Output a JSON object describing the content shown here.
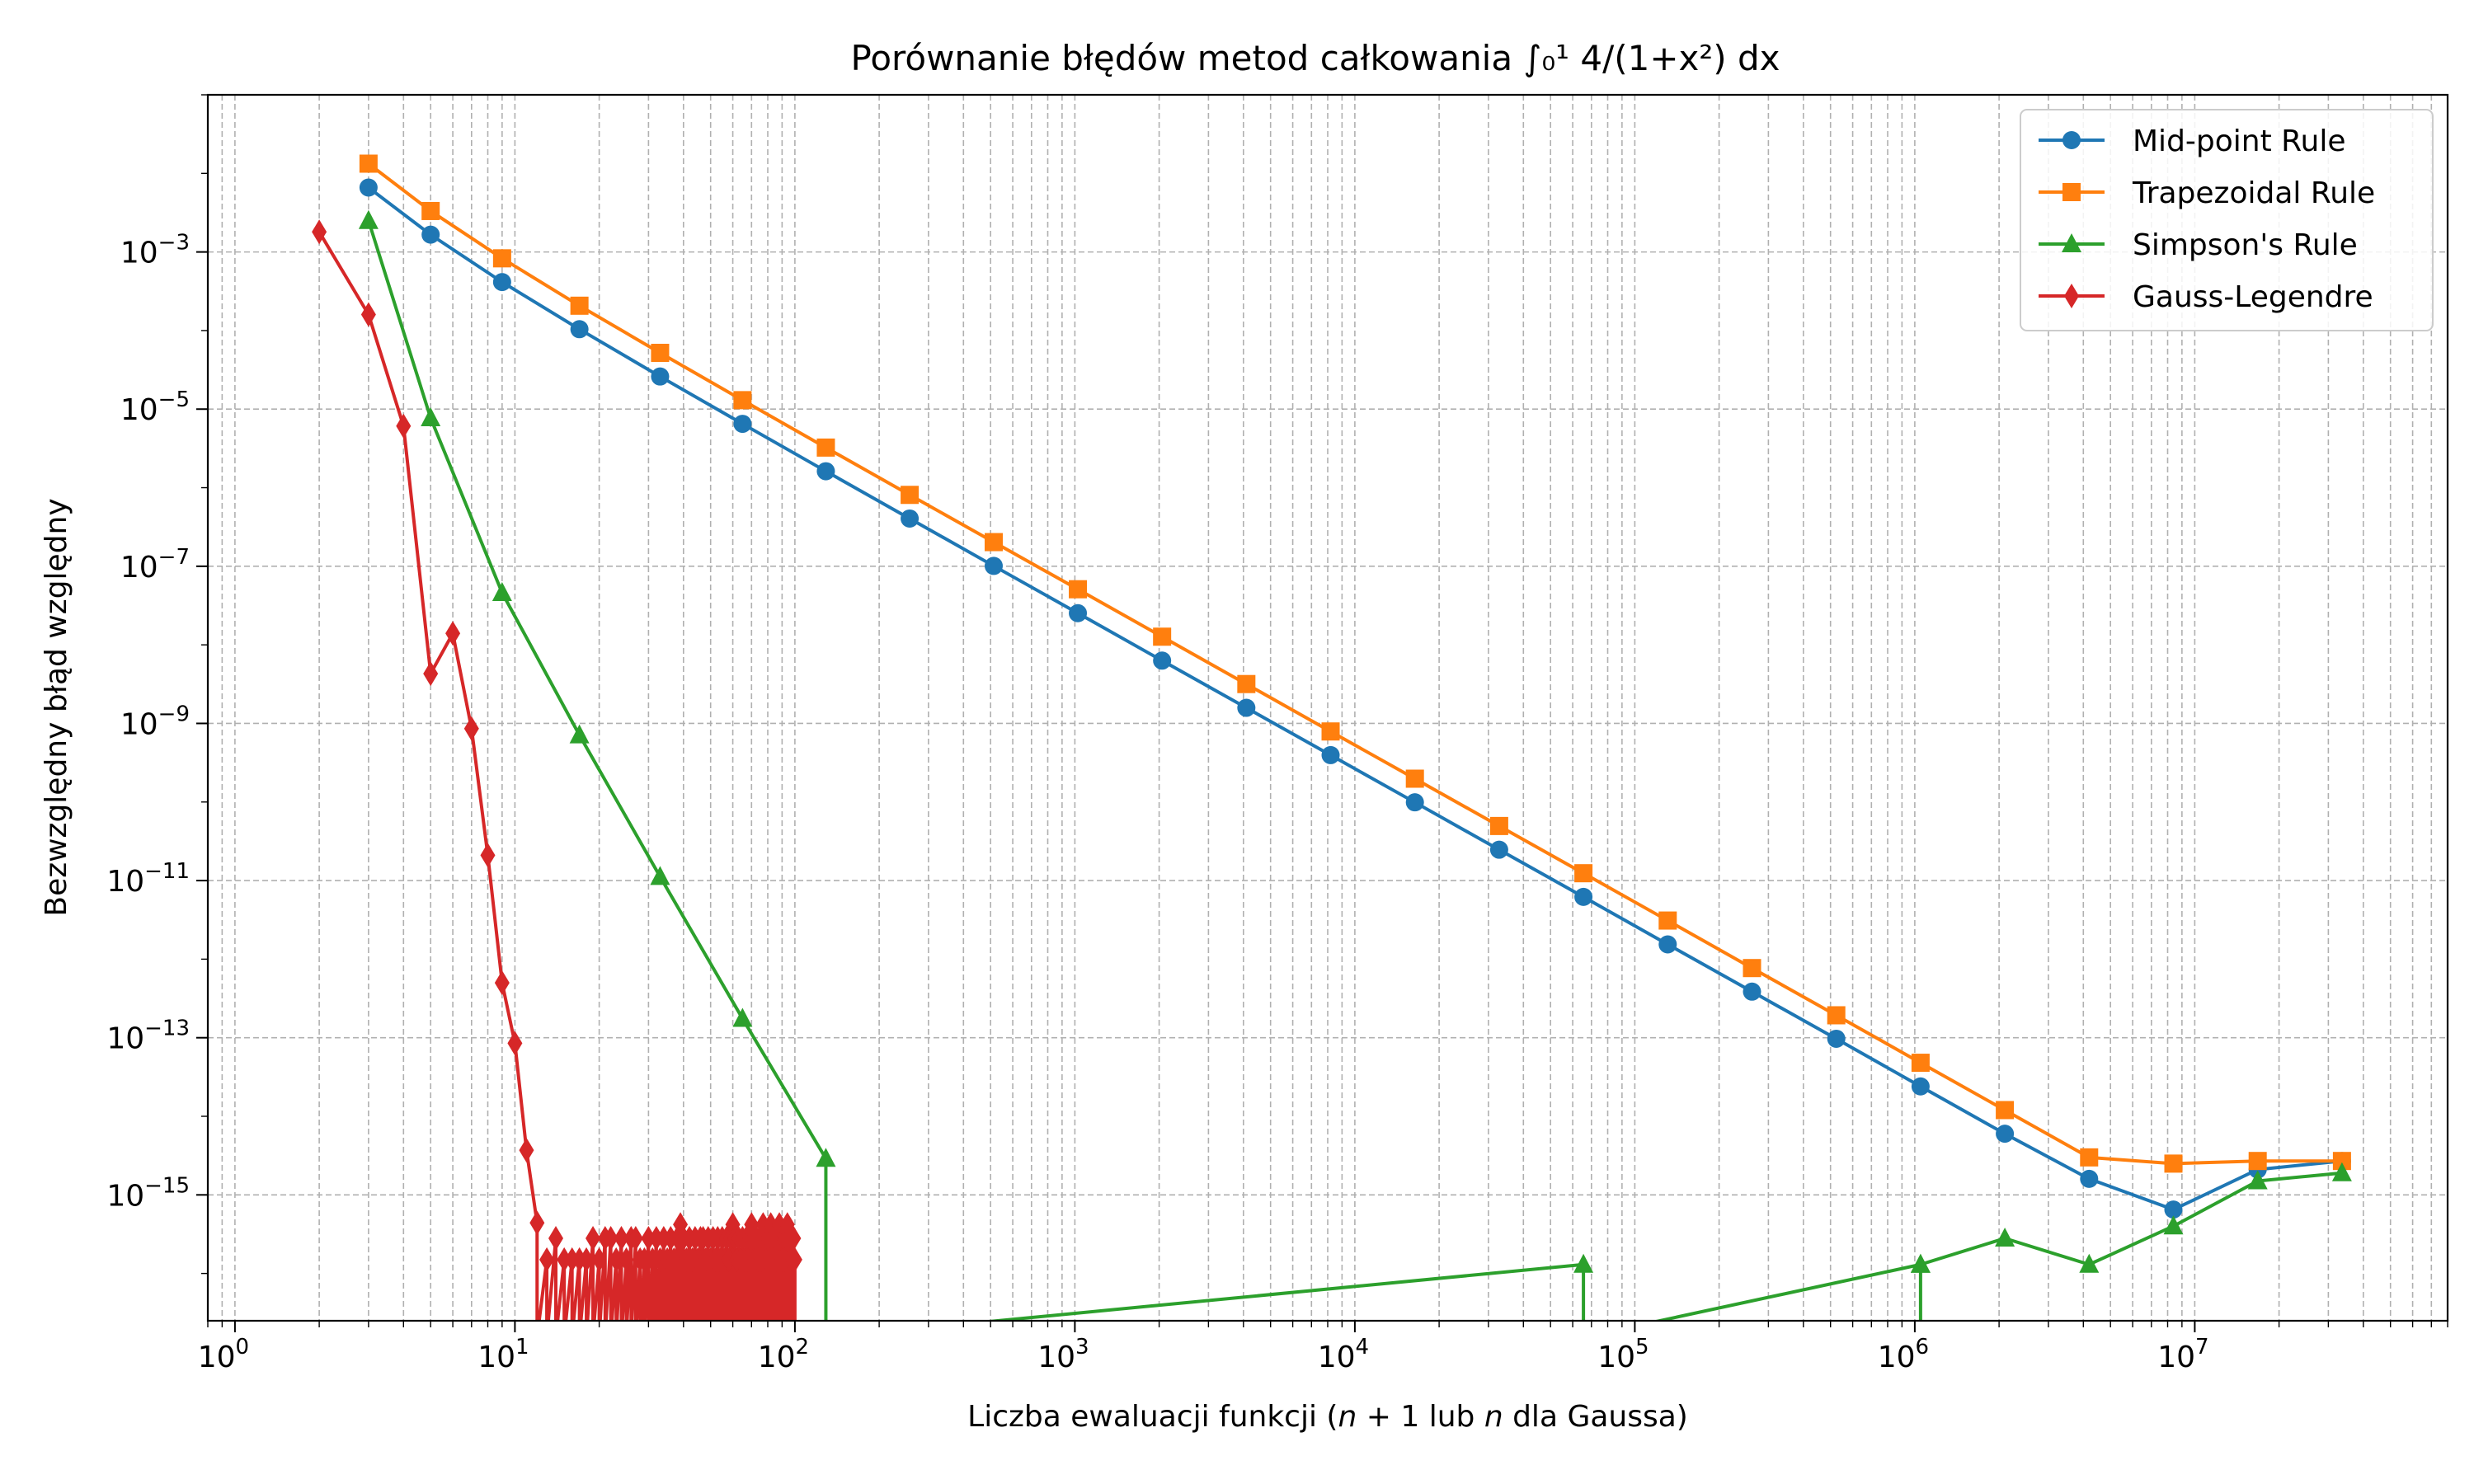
{
  "chart_data": {
    "type": "line",
    "title": "Porównanie błędów metod całkowania ∫₀¹ 4/(1+x²) dx",
    "xlabel_parts": [
      "Liczba ewaluacji funkcji (",
      "n",
      " + 1 lub ",
      "n",
      " dla Gaussa)"
    ],
    "ylabel": "Bezwzględny błąd względny",
    "xscale": "log",
    "yscale": "log",
    "xlim": [
      0.8,
      80000000
    ],
    "ylim": [
      2.5e-17,
      0.1
    ],
    "grid": "both (major and minor), dashed",
    "legend_position": "top-right",
    "x_ticks": [
      {
        "v": 1,
        "base": "10",
        "exp": "0"
      },
      {
        "v": 10,
        "base": "10",
        "exp": "1"
      },
      {
        "v": 100,
        "base": "10",
        "exp": "2"
      },
      {
        "v": 1000,
        "base": "10",
        "exp": "3"
      },
      {
        "v": 10000,
        "base": "10",
        "exp": "4"
      },
      {
        "v": 100000,
        "base": "10",
        "exp": "5"
      },
      {
        "v": 1000000,
        "base": "10",
        "exp": "6"
      },
      {
        "v": 10000000,
        "base": "10",
        "exp": "7"
      }
    ],
    "y_ticks": [
      {
        "v": 0.001,
        "base": "10",
        "exp": "−3"
      },
      {
        "v": 1e-05,
        "base": "10",
        "exp": "−5"
      },
      {
        "v": 1e-07,
        "base": "10",
        "exp": "−7"
      },
      {
        "v": 1e-09,
        "base": "10",
        "exp": "−9"
      },
      {
        "v": 1e-11,
        "base": "10",
        "exp": "−11"
      },
      {
        "v": 1e-13,
        "base": "10",
        "exp": "−13"
      },
      {
        "v": 1e-15,
        "base": "10",
        "exp": "−15"
      }
    ],
    "series": [
      {
        "name": "Mid-point Rule",
        "color": "#1f77b4",
        "marker": "circle",
        "points": [
          [
            3,
            0.0066
          ],
          [
            5,
            0.00166
          ],
          [
            9,
            0.000414
          ],
          [
            17,
            0.000104
          ],
          [
            33,
            2.6e-05
          ],
          [
            65,
            6.5e-06
          ],
          [
            129,
            1.62e-06
          ],
          [
            257,
            4.05e-07
          ],
          [
            513,
            1.01e-07
          ],
          [
            1025,
            2.53e-08
          ],
          [
            2049,
            6.3e-09
          ],
          [
            4097,
            1.58e-09
          ],
          [
            8193,
            3.95e-10
          ],
          [
            16385,
            9.9e-11
          ],
          [
            32769,
            2.47e-11
          ],
          [
            65537,
            6.2e-12
          ],
          [
            131073,
            1.54e-12
          ],
          [
            262145,
            3.86e-13
          ],
          [
            524289,
            9.7e-14
          ],
          [
            1048577,
            2.4e-14
          ],
          [
            2097153,
            6e-15
          ],
          [
            4194305,
            1.6e-15
          ],
          [
            8388609,
            6.5e-16
          ],
          [
            16777217,
            2.1e-15
          ],
          [
            33554433,
            2.7e-15
          ]
        ]
      },
      {
        "name": "Trapezoidal Rule",
        "color": "#ff7f0e",
        "marker": "square",
        "points": [
          [
            3,
            0.0133
          ],
          [
            5,
            0.00332
          ],
          [
            9,
            0.00083
          ],
          [
            17,
            0.000207
          ],
          [
            33,
            5.2e-05
          ],
          [
            65,
            1.3e-05
          ],
          [
            129,
            3.24e-06
          ],
          [
            257,
            8.1e-07
          ],
          [
            513,
            2.03e-07
          ],
          [
            1025,
            5.1e-08
          ],
          [
            2049,
            1.27e-08
          ],
          [
            4097,
            3.17e-09
          ],
          [
            8193,
            7.9e-10
          ],
          [
            16385,
            1.98e-10
          ],
          [
            32769,
            4.95e-11
          ],
          [
            65537,
            1.24e-11
          ],
          [
            131073,
            3.1e-12
          ],
          [
            262145,
            7.7e-13
          ],
          [
            524289,
            1.93e-13
          ],
          [
            1048577,
            4.8e-14
          ],
          [
            2097153,
            1.2e-14
          ],
          [
            4194305,
            3e-15
          ],
          [
            8388609,
            2.5e-15
          ],
          [
            16777217,
            2.7e-15
          ],
          [
            33554433,
            2.7e-15
          ]
        ]
      },
      {
        "name": "Simpson's Rule",
        "color": "#2ca02c",
        "marker": "triangle",
        "points": [
          [
            3,
            0.0025
          ],
          [
            5,
            7.7e-06
          ],
          [
            9,
            4.6e-08
          ],
          [
            17,
            7.1e-10
          ],
          [
            33,
            1.12e-11
          ],
          [
            65,
            1.75e-13
          ],
          [
            129,
            2.9e-15
          ],
          [
            129,
            0
          ],
          [
            65537,
            1.3e-16
          ],
          [
            65537,
            0
          ],
          [
            1048577,
            1.3e-16
          ],
          [
            1048577,
            0
          ],
          [
            1048577,
            1.3e-16
          ],
          [
            2097153,
            2.8e-16
          ],
          [
            4194305,
            1.3e-16
          ],
          [
            8388609,
            4e-16
          ],
          [
            16777217,
            1.5e-15
          ],
          [
            33554433,
            1.9e-15
          ]
        ]
      },
      {
        "name": "Gauss-Legendre",
        "color": "#d62728",
        "marker": "diamond",
        "points": [
          [
            2,
            0.0018
          ],
          [
            3,
            0.00016
          ],
          [
            4,
            6.1e-06
          ],
          [
            5,
            4.3e-09
          ],
          [
            6,
            1.4e-08
          ],
          [
            7,
            8.6e-10
          ],
          [
            8,
            2.1e-11
          ],
          [
            9,
            5e-13
          ],
          [
            10,
            8.5e-14
          ],
          [
            11,
            3.7e-15
          ],
          [
            12,
            4.4e-16
          ],
          [
            12,
            0
          ],
          [
            13,
            1.5e-16
          ],
          [
            13,
            0
          ],
          [
            14,
            2.8e-16
          ],
          [
            14,
            0
          ],
          [
            15,
            1.5e-16
          ],
          [
            15,
            0
          ],
          [
            16,
            1.5e-16
          ],
          [
            16,
            0
          ],
          [
            17,
            1.5e-16
          ],
          [
            17,
            0
          ],
          [
            18,
            1.5e-16
          ],
          [
            18,
            0
          ],
          [
            19,
            2.8e-16
          ],
          [
            19,
            0
          ],
          [
            20,
            1.5e-16
          ],
          [
            20,
            0
          ],
          [
            21,
            2.8e-16
          ],
          [
            21,
            0
          ],
          [
            22,
            2.8e-16
          ],
          [
            22,
            0
          ],
          [
            23,
            1.5e-16
          ],
          [
            23,
            0
          ],
          [
            24,
            2.8e-16
          ],
          [
            24,
            0
          ],
          [
            25,
            1.5e-16
          ],
          [
            25,
            0
          ],
          [
            26,
            2.8e-16
          ],
          [
            26,
            0
          ],
          [
            27,
            2.8e-16
          ],
          [
            27,
            0
          ],
          [
            28,
            1.5e-16
          ],
          [
            28,
            0
          ],
          [
            29,
            1.5e-16
          ],
          [
            29,
            0
          ],
          [
            30,
            2.8e-16
          ],
          [
            30,
            0
          ],
          [
            31,
            1.5e-16
          ],
          [
            31,
            0
          ],
          [
            32,
            2.8e-16
          ],
          [
            32,
            0
          ],
          [
            33,
            1.5e-16
          ],
          [
            33,
            0
          ],
          [
            34,
            2.8e-16
          ],
          [
            34,
            0
          ],
          [
            35,
            1.5e-16
          ],
          [
            35,
            0
          ],
          [
            36,
            2.8e-16
          ],
          [
            36,
            0
          ],
          [
            37,
            1.5e-16
          ],
          [
            37,
            0
          ],
          [
            38,
            2.8e-16
          ],
          [
            38,
            0
          ],
          [
            39,
            4.2e-16
          ],
          [
            39,
            0
          ],
          [
            40,
            2.8e-16
          ],
          [
            40,
            0
          ],
          [
            41,
            1.5e-16
          ],
          [
            41,
            0
          ],
          [
            42,
            2.8e-16
          ],
          [
            42,
            0
          ],
          [
            43,
            1.5e-16
          ],
          [
            43,
            0
          ],
          [
            44,
            2.8e-16
          ],
          [
            44,
            0
          ],
          [
            45,
            1.5e-16
          ],
          [
            45,
            0
          ],
          [
            46,
            2.8e-16
          ],
          [
            46,
            0
          ],
          [
            47,
            2.8e-16
          ],
          [
            47,
            0
          ],
          [
            48,
            1.5e-16
          ],
          [
            48,
            0
          ],
          [
            49,
            2.8e-16
          ],
          [
            49,
            0
          ],
          [
            50,
            1.5e-16
          ],
          [
            50,
            0
          ],
          [
            51,
            2.8e-16
          ],
          [
            51,
            0
          ],
          [
            52,
            1.5e-16
          ],
          [
            52,
            0
          ],
          [
            53,
            2.8e-16
          ],
          [
            53,
            0
          ],
          [
            54,
            1.5e-16
          ],
          [
            54,
            0
          ],
          [
            55,
            2.8e-16
          ],
          [
            55,
            0
          ],
          [
            56,
            1.5e-16
          ],
          [
            56,
            0
          ],
          [
            57,
            2.8e-16
          ],
          [
            57,
            0
          ],
          [
            58,
            1.5e-16
          ],
          [
            58,
            0
          ],
          [
            59,
            2.8e-16
          ],
          [
            59,
            0
          ],
          [
            60,
            4.2e-16
          ],
          [
            60,
            0
          ],
          [
            61,
            2.8e-16
          ],
          [
            61,
            0
          ],
          [
            62,
            1.5e-16
          ],
          [
            62,
            0
          ],
          [
            63,
            2.8e-16
          ],
          [
            63,
            0
          ],
          [
            64,
            1.5e-16
          ],
          [
            64,
            0
          ],
          [
            65,
            2.8e-16
          ],
          [
            65,
            0
          ],
          [
            66,
            1.5e-16
          ],
          [
            66,
            0
          ],
          [
            67,
            2.8e-16
          ],
          [
            67,
            0
          ],
          [
            68,
            1.5e-16
          ],
          [
            68,
            0
          ],
          [
            69,
            2.8e-16
          ],
          [
            69,
            0
          ],
          [
            70,
            4.2e-16
          ],
          [
            70,
            0
          ],
          [
            71,
            2.8e-16
          ],
          [
            71,
            0
          ],
          [
            72,
            1.5e-16
          ],
          [
            72,
            0
          ],
          [
            73,
            2.8e-16
          ],
          [
            73,
            0
          ],
          [
            74,
            1.5e-16
          ],
          [
            74,
            0
          ],
          [
            75,
            2.8e-16
          ],
          [
            75,
            0
          ],
          [
            76,
            1.5e-16
          ],
          [
            76,
            0
          ],
          [
            77,
            4.2e-16
          ],
          [
            77,
            0
          ],
          [
            78,
            2.8e-16
          ],
          [
            78,
            0
          ],
          [
            79,
            1.5e-16
          ],
          [
            79,
            0
          ],
          [
            80,
            2.8e-16
          ],
          [
            80,
            0
          ],
          [
            81,
            1.5e-16
          ],
          [
            81,
            0
          ],
          [
            82,
            4.2e-16
          ],
          [
            82,
            0
          ],
          [
            83,
            2.8e-16
          ],
          [
            83,
            0
          ],
          [
            84,
            1.5e-16
          ],
          [
            84,
            0
          ],
          [
            85,
            2.8e-16
          ],
          [
            85,
            0
          ],
          [
            86,
            1.5e-16
          ],
          [
            86,
            0
          ],
          [
            87,
            2.8e-16
          ],
          [
            87,
            0
          ],
          [
            88,
            4.2e-16
          ],
          [
            88,
            0
          ],
          [
            89,
            2.8e-16
          ],
          [
            89,
            0
          ],
          [
            90,
            1.5e-16
          ],
          [
            90,
            0
          ],
          [
            91,
            2.8e-16
          ],
          [
            91,
            0
          ],
          [
            92,
            1.5e-16
          ],
          [
            92,
            0
          ],
          [
            93,
            2.8e-16
          ],
          [
            93,
            0
          ],
          [
            94,
            4.2e-16
          ],
          [
            94,
            0
          ],
          [
            95,
            2.8e-16
          ],
          [
            95,
            0
          ],
          [
            96,
            1.5e-16
          ],
          [
            96,
            0
          ],
          [
            97,
            2.8e-16
          ],
          [
            97,
            0
          ],
          [
            98,
            1.5e-16
          ],
          [
            98,
            0
          ],
          [
            99,
            2.8e-16
          ],
          [
            99,
            0
          ],
          [
            100,
            1.5e-16
          ],
          [
            100,
            0
          ]
        ]
      }
    ]
  }
}
